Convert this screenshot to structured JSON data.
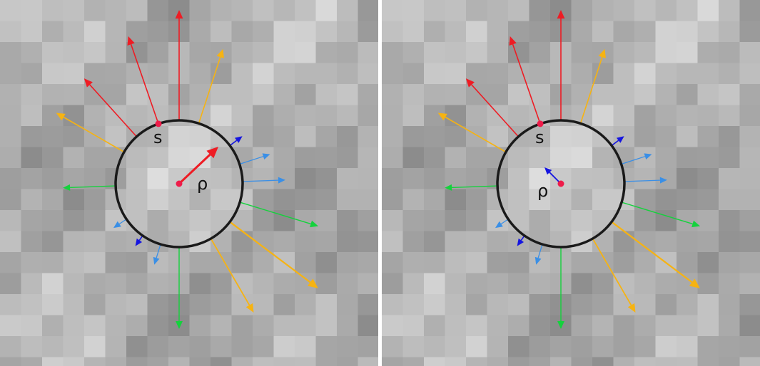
{
  "colors": {
    "red": "#ee1c24",
    "orange": "#f6b312",
    "blue": "#1515e0",
    "light_blue": "#3a8fe6",
    "green": "#14d23c",
    "circle": "#1a1a1a",
    "point": "#ee1c4a"
  },
  "panels": [
    {
      "point_label": "s",
      "center_label": "ρ"
    },
    {
      "point_label": "s",
      "center_label": "ρ"
    }
  ]
}
